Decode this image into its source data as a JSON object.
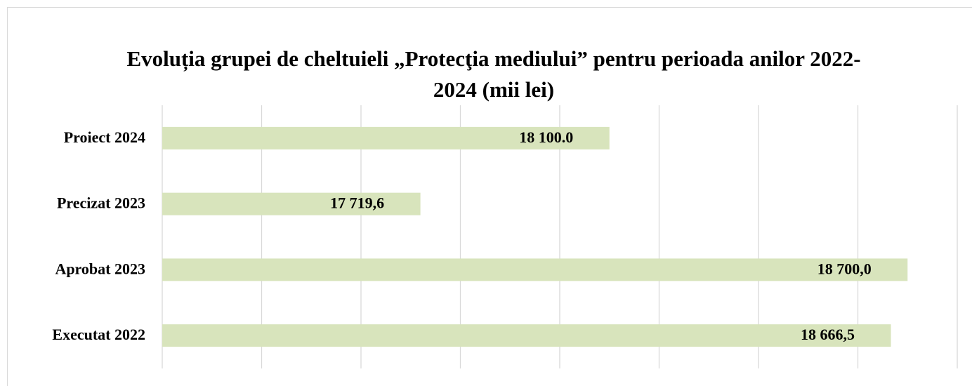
{
  "chart_data": {
    "type": "barh",
    "title": "Evoluția grupei de cheltuieli „Protecţia mediului” pentru perioada anilor 2022-2024 (mii lei)",
    "categories": [
      "Proiect 2024",
      "Precizat 2023",
      "Aprobat 2023",
      "Executat 2022"
    ],
    "values": [
      18100,
      17719.6,
      18700,
      18666.5
    ],
    "value_labels": [
      "18 100.0",
      "17 719,6",
      "18 700,0",
      "18 666,5"
    ],
    "color": "#d8e4bc",
    "xlim": [
      17200,
      18800
    ],
    "xticks": [
      17200,
      17400,
      17600,
      17800,
      18000,
      18200,
      18400,
      18600,
      18800
    ],
    "grid": true
  }
}
